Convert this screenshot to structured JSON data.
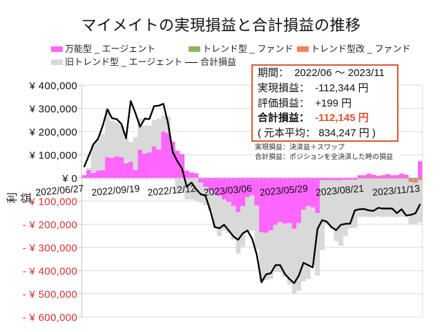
{
  "title": "マイメイトの実現損益と合計損益の推移",
  "legend": [
    {
      "label": "万能型 _ エージェント",
      "color": "#FF66FF",
      "kind": "box"
    },
    {
      "label": "トレンド型 _ ファンド",
      "color": "#8AB55F",
      "kind": "box"
    },
    {
      "label": "トレンド型改 _ ファンド",
      "color": "#F2845C",
      "kind": "box"
    },
    {
      "label": "旧トレンド型 _ エージェント",
      "color": "#D9D9D9",
      "kind": "box"
    },
    {
      "label": "合計損益",
      "color": "#000000",
      "kind": "line"
    }
  ],
  "summary": {
    "period_label": "期間：",
    "period_value": "2022/06 ～ 2023/11",
    "realized_label": "実現損益：",
    "realized_value": "-112,344 円",
    "unrealized_label": "評価損益：",
    "unrealized_value": "+199 円",
    "total_label": "合計損益：",
    "total_value": "-112,145 円",
    "principal": "( 元本平均： 834,247 円 )"
  },
  "notes": [
    "実現損益：決済益＋スワップ",
    "合計損益：ポジションを全決済した時の損益"
  ],
  "colors": {
    "positive_label": "#111111",
    "negative_label": "#D32F2F",
    "box_border": "#D9582C",
    "highlight": "#E0522A",
    "grid": "#D9D9D9",
    "axis": "#BFBFBF"
  },
  "chart_data": {
    "type": "bar",
    "stacked": true,
    "title": "マイメイトの実現損益と合計損益の推移",
    "xlabel": "",
    "ylabel": "利益",
    "ylim": [
      -600000,
      400000
    ],
    "grid": true,
    "legend_position": "top",
    "yticks": [
      400000,
      300000,
      200000,
      100000,
      0,
      -100000,
      -200000,
      -300000,
      -400000,
      -500000,
      -600000
    ],
    "ytick_labels": [
      "¥ 400,000",
      "¥ 300,000",
      "¥ 200,000",
      "¥ 100,000",
      "¥ 0",
      "- ¥ 100,000",
      "- ¥ 200,000",
      "- ¥ 300,000",
      "- ¥ 400,000",
      "- ¥ 500,000",
      "- ¥ 600,000"
    ],
    "x_tick_labels": [
      {
        "index": 0,
        "label": "2022/06/27"
      },
      {
        "index": 12,
        "label": "2022/09/19"
      },
      {
        "index": 24,
        "label": "2022/12/12"
      },
      {
        "index": 36,
        "label": "2023/03/06"
      },
      {
        "index": 48,
        "label": "2023/05/29"
      },
      {
        "index": 60,
        "label": "2023/08/21"
      },
      {
        "index": 72,
        "label": "2023/11/13"
      }
    ],
    "categories": [
      "2022/06/27",
      "2022/07/04",
      "2022/07/11",
      "2022/07/18",
      "2022/07/25",
      "2022/08/01",
      "2022/08/08",
      "2022/08/15",
      "2022/08/22",
      "2022/08/29",
      "2022/09/05",
      "2022/09/12",
      "2022/09/19",
      "2022/09/26",
      "2022/10/03",
      "2022/10/10",
      "2022/10/17",
      "2022/10/24",
      "2022/10/31",
      "2022/11/07",
      "2022/11/14",
      "2022/11/21",
      "2022/11/28",
      "2022/12/05",
      "2022/12/12",
      "2022/12/19",
      "2022/12/26",
      "2023/01/02",
      "2023/01/09",
      "2023/01/16",
      "2023/01/23",
      "2023/01/30",
      "2023/02/06",
      "2023/02/13",
      "2023/02/20",
      "2023/02/27",
      "2023/03/06",
      "2023/03/13",
      "2023/03/20",
      "2023/03/27",
      "2023/04/03",
      "2023/04/10",
      "2023/04/17",
      "2023/04/24",
      "2023/05/01",
      "2023/05/08",
      "2023/05/15",
      "2023/05/22",
      "2023/05/29",
      "2023/06/05",
      "2023/06/12",
      "2023/06/19",
      "2023/06/26",
      "2023/07/03",
      "2023/07/10",
      "2023/07/17",
      "2023/07/24",
      "2023/07/31",
      "2023/08/07",
      "2023/08/14",
      "2023/08/21",
      "2023/08/28",
      "2023/09/04",
      "2023/09/11",
      "2023/09/18",
      "2023/09/25",
      "2023/10/02",
      "2023/10/09",
      "2023/10/16",
      "2023/10/23",
      "2023/10/30",
      "2023/11/06",
      "2023/11/13"
    ],
    "series": [
      {
        "name": "万能型 _ エージェント",
        "type": "bar",
        "color": "#FF66FF",
        "values": [
          12000,
          34000,
          22000,
          32000,
          34000,
          90000,
          87000,
          93000,
          90000,
          64000,
          70000,
          34000,
          122000,
          106000,
          111000,
          136000,
          123000,
          200000,
          194000,
          156000,
          117000,
          103000,
          32000,
          24000,
          20000,
          -20000,
          -38000,
          -53000,
          -68000,
          -78000,
          -93000,
          -103000,
          -120000,
          -148000,
          -122000,
          -83000,
          -75000,
          -119000,
          -235000,
          -237000,
          -227000,
          -202000,
          -190000,
          -197000,
          -195000,
          -219000,
          -195000,
          -137000,
          -121000,
          -127000,
          -152000,
          -10000,
          -10000,
          -10000,
          -10000,
          -10000,
          -8000,
          -8000,
          -8000,
          12000,
          12000,
          19000,
          14000,
          9000,
          12000,
          17000,
          12000,
          12000,
          19000,
          14000,
          -2000,
          -2000,
          72000
        ]
      },
      {
        "name": "トレンド型 _ ファンド",
        "type": "bar",
        "color": "#8AB55F",
        "values": [
          0,
          0,
          0,
          0,
          0,
          0,
          0,
          0,
          0,
          0,
          0,
          0,
          0,
          0,
          0,
          0,
          0,
          0,
          0,
          0,
          0,
          0,
          0,
          0,
          0,
          0,
          0,
          0,
          0,
          0,
          0,
          0,
          0,
          0,
          0,
          0,
          0,
          0,
          0,
          0,
          0,
          0,
          0,
          0,
          0,
          0,
          0,
          0,
          0,
          0,
          0,
          0,
          0,
          0,
          0,
          0,
          0,
          0,
          0,
          -1000,
          -1000,
          -1000,
          -1000,
          -1000,
          -1000,
          -1000,
          -1000,
          -1000,
          -1000,
          -1000,
          -7000,
          -7000,
          -5000
        ]
      },
      {
        "name": "トレンド型改 _ ファンド",
        "type": "bar",
        "color": "#F2845C",
        "values": [
          0,
          0,
          0,
          0,
          0,
          0,
          0,
          0,
          0,
          0,
          0,
          0,
          0,
          0,
          0,
          0,
          0,
          0,
          0,
          0,
          0,
          0,
          0,
          0,
          0,
          0,
          0,
          0,
          0,
          0,
          0,
          0,
          0,
          0,
          0,
          0,
          0,
          0,
          0,
          0,
          0,
          0,
          0,
          0,
          0,
          0,
          0,
          0,
          0,
          0,
          0,
          0,
          0,
          0,
          0,
          0,
          0,
          0,
          0,
          -2000,
          -2000,
          -2000,
          -2000,
          -2000,
          -2000,
          -2000,
          -2000,
          -2000,
          -2000,
          -2000,
          -8000,
          -12000,
          -4000
        ]
      },
      {
        "name": "旧トレンド型 _ エージェント",
        "type": "bar",
        "color": "#D9D9D9",
        "values": [
          0,
          10000,
          122000,
          134000,
          157000,
          208000,
          159000,
          146000,
          139000,
          107000,
          86000,
          142000,
          134000,
          120000,
          115000,
          115000,
          133000,
          70000,
          72000,
          0,
          -62000,
          -62000,
          -93000,
          -93000,
          -98000,
          -87000,
          -80000,
          -89000,
          -149000,
          -174000,
          -134000,
          -134000,
          -147000,
          -178000,
          -174000,
          -149000,
          -152000,
          -187000,
          -211000,
          -204000,
          -209000,
          -204000,
          -216000,
          -229000,
          -265000,
          -281000,
          -291000,
          -309000,
          -315000,
          -249000,
          -269000,
          -301000,
          -192000,
          -207000,
          -262000,
          -282000,
          -244000,
          -209000,
          -207000,
          -165000,
          -164000,
          -166000,
          -165000,
          -163000,
          -166000,
          -165000,
          -164000,
          -166000,
          -165000,
          -165000,
          -182000,
          -178000,
          -185000
        ]
      },
      {
        "name": "合計損益",
        "type": "line",
        "color": "#000000",
        "values": [
          47000,
          95000,
          145000,
          169000,
          225000,
          296000,
          258000,
          254000,
          233000,
          171000,
          332000,
          281000,
          221000,
          256000,
          254000,
          310000,
          312000,
          320000,
          235000,
          111000,
          72000,
          40000,
          -38000,
          -20000,
          -48000,
          -70000,
          -76000,
          -137000,
          -212000,
          -217000,
          -202000,
          -227000,
          -252000,
          -267000,
          -239000,
          -227000,
          -262000,
          -331000,
          -450000,
          -416000,
          -411000,
          -376000,
          -376000,
          -414000,
          -436000,
          -454000,
          -421000,
          -366000,
          -376000,
          -386000,
          -220000,
          -182000,
          -189000,
          -212000,
          -225000,
          -202000,
          -198000,
          -197000,
          -140000,
          -135000,
          -134000,
          -140000,
          -142000,
          -129000,
          -132000,
          -132000,
          -132000,
          -152000,
          -135000,
          -162000,
          -159000,
          -152000,
          -112145
        ]
      }
    ]
  }
}
